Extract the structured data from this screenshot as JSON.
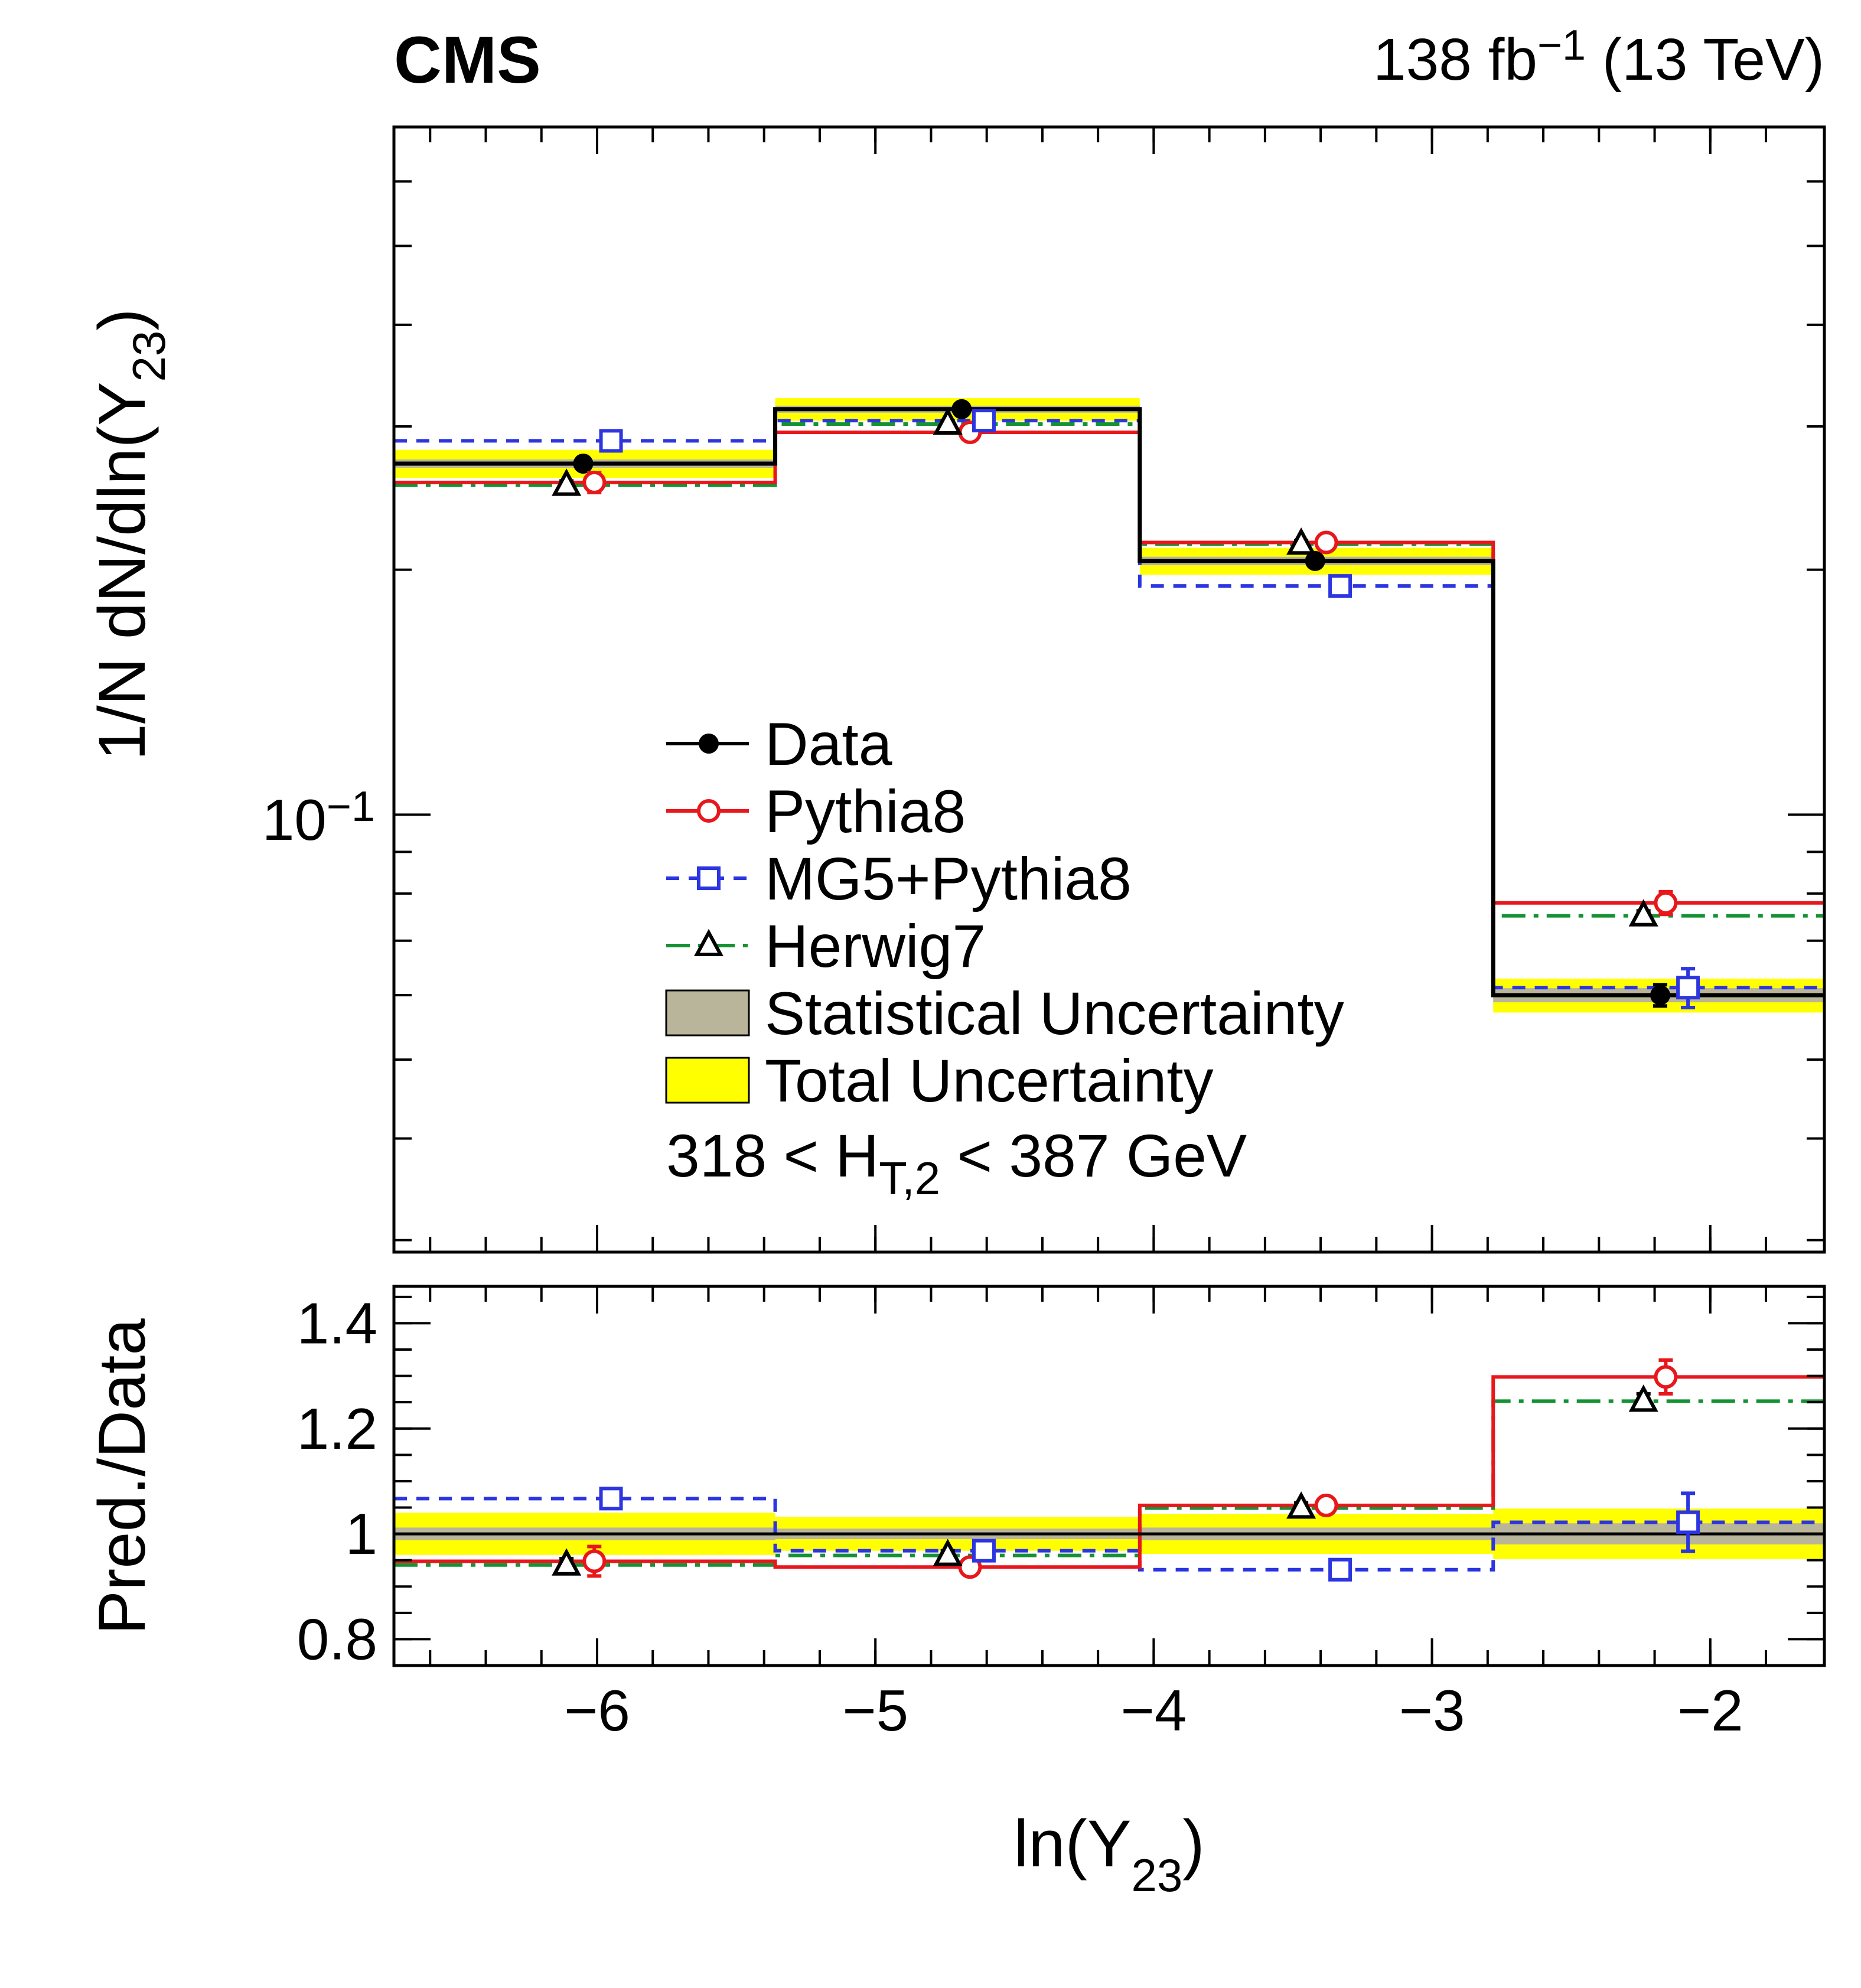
{
  "header": {
    "experiment": "CMS",
    "lumi": {
      "before_sup": "138 fb",
      "sup": "−1",
      "after": " (13 TeV)"
    }
  },
  "main_panel": {
    "y_title": {
      "before_sub": "1/N dN/dln(Y",
      "sub": "23",
      "after": ")"
    },
    "y_tick_label": {
      "base": "10",
      "sup": "−1"
    },
    "selection": {
      "before_sub": "318 < H",
      "sub": "T,2",
      "after": " < 387 GeV"
    }
  },
  "ratio_panel": {
    "y_title": "Pred./Data",
    "y_ticks": [
      {
        "value": 0.8,
        "label": "0.8"
      },
      {
        "value": 1.0,
        "label": "1"
      },
      {
        "value": 1.2,
        "label": "1.2"
      },
      {
        "value": 1.4,
        "label": "1.4"
      }
    ]
  },
  "x_axis": {
    "title": {
      "before_sub": "ln(Y",
      "sub": "23",
      "after": ")"
    },
    "ticks": [
      {
        "value": -6,
        "label": "−6"
      },
      {
        "value": -5,
        "label": "−5"
      },
      {
        "value": -4,
        "label": "−4"
      },
      {
        "value": -3,
        "label": "−3"
      },
      {
        "value": -2,
        "label": "−2"
      }
    ]
  },
  "legend": {
    "items": [
      {
        "label": "Data"
      },
      {
        "label": "Pythia8"
      },
      {
        "label": "MG5+Pythia8"
      },
      {
        "label": "Herwig7"
      },
      {
        "label": "Statistical Uncertainty"
      },
      {
        "label": "Total Uncertainty"
      }
    ]
  },
  "chart_data": {
    "type": "line",
    "style": "step-histogram-with-ratio-panel",
    "title": "CMS 138 fb−1 (13 TeV), 318 < H_T,2 < 387 GeV",
    "xlabel": "ln(Y_23)",
    "ylabel_main": "1/N dN/dln(Y_23)",
    "ylabel_ratio": "Pred./Data",
    "y_scale_main": "log",
    "x_range": [
      -6.73,
      -1.59
    ],
    "main_y_range": [
      0.029,
      0.7
    ],
    "ratio_y_range": [
      0.75,
      1.47
    ],
    "bin_edges": [
      -6.73,
      -5.36,
      -4.05,
      -2.78,
      -1.59
    ],
    "series": [
      {
        "name": "Data",
        "color": "#000000",
        "marker": "filled-circle",
        "line": "solid",
        "values": [
          0.27,
          0.315,
          0.205,
          0.06
        ],
        "marker_x": [
          -6.05,
          -4.69,
          -3.42,
          -2.18
        ],
        "yerr_rel": [
          0.015,
          0.012,
          0.015,
          0.03
        ]
      },
      {
        "name": "Pythia8",
        "color": "#e8171b",
        "marker": "open-circle",
        "line": "solid",
        "values": [
          0.256,
          0.295,
          0.216,
          0.0779
        ],
        "ratio": [
          0.948,
          0.937,
          1.054,
          1.298
        ],
        "ratio_err": [
          0.028,
          0.012,
          0.014,
          0.032
        ],
        "marker_x": [
          -6.01,
          -4.66,
          -3.38,
          -2.16
        ]
      },
      {
        "name": "MG5+Pythia8",
        "color": "#2c35e0",
        "marker": "open-square",
        "line": "dashed",
        "values": [
          0.288,
          0.305,
          0.191,
          0.0613
        ],
        "ratio": [
          1.067,
          0.968,
          0.932,
          1.022
        ],
        "ratio_err": [
          0.014,
          0.01,
          0.012,
          0.055
        ],
        "marker_x": [
          -5.95,
          -4.61,
          -3.33,
          -2.08
        ]
      },
      {
        "name": "Herwig7",
        "color": "#169133",
        "marker": "open-triangle",
        "marker_color": "#000000",
        "line": "dashdot",
        "values": [
          0.254,
          0.302,
          0.215,
          0.0751
        ],
        "ratio": [
          0.941,
          0.959,
          1.049,
          1.252
        ],
        "ratio_err": [
          0.012,
          0.009,
          0.01,
          0.014
        ],
        "marker_x": [
          -6.11,
          -4.74,
          -3.47,
          -2.24
        ]
      }
    ],
    "uncertainty": {
      "stat_rel": [
        0.012,
        0.01,
        0.012,
        0.02
      ],
      "total_rel": [
        0.04,
        0.032,
        0.038,
        0.048
      ],
      "stat_color": "#b9b59a",
      "total_color": "#ffff00"
    }
  }
}
